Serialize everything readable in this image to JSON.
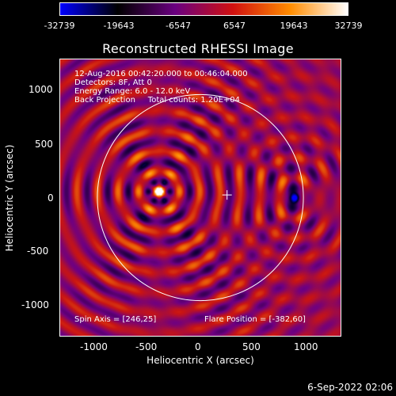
{
  "colorbar": {
    "tick_labels": [
      "-32739",
      "-19643",
      "-6547",
      "6547",
      "19643",
      "32739"
    ],
    "colors": [
      "#0000ff",
      "#000000",
      "#6a0080",
      "#d01010",
      "#ff8c00",
      "#ffffff"
    ]
  },
  "plot": {
    "title": "Reconstructed RHESSI Image",
    "xlabel": "Heliocentric X (arcsec)",
    "ylabel": "Heliocentric Y (arcsec)",
    "x_ticks": [
      "-1000",
      "-500",
      "0",
      "500",
      "1000"
    ],
    "y_ticks": [
      "1000",
      "500",
      "0",
      "-500",
      "-1000"
    ],
    "info_lines": [
      "12-Aug-2016 00:42:20.000 to 00:46:04.000",
      "Detectors: 8F, Att 0",
      "Energy Range: 6.0 - 12.0 keV",
      "Back Projection     Total counts: 1.20E+04"
    ],
    "spin_axis": "Spin Axis = [246,25]",
    "flare_position": "Flare Position = [-382,60]",
    "colors": {
      "limb": "#ffffff",
      "frame": "#ffffff"
    }
  },
  "chart_data": {
    "type": "heatmap",
    "title": "Reconstructed RHESSI Image",
    "xlabel": "Heliocentric X (arcsec)",
    "ylabel": "Heliocentric Y (arcsec)",
    "xlim": [
      -1300,
      1300
    ],
    "ylim": [
      -1300,
      1300
    ],
    "x_ticks": [
      -1000,
      -500,
      0,
      500,
      1000
    ],
    "y_ticks": [
      -1000,
      -500,
      0,
      500,
      1000
    ],
    "colorbar_range": [
      -32739,
      32739
    ],
    "colorbar_ticks": [
      -32739,
      -19643,
      -6547,
      6547,
      19643,
      32739
    ],
    "solar_limb": {
      "center": [
        0,
        0
      ],
      "radius": 950
    },
    "spin_axis": [
      246,
      25
    ],
    "flare_position": [
      -382,
      60
    ],
    "bright_source": [
      -382,
      60
    ],
    "dark_source": [
      870,
      0
    ]
  },
  "footer": {
    "datestamp": "6-Sep-2022 02:06"
  }
}
